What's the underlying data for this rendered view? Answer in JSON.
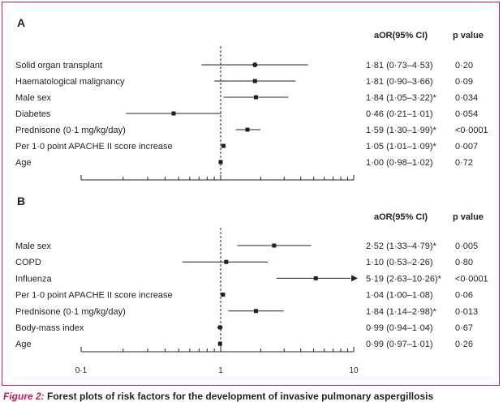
{
  "figure": {
    "caption_label": "Figure 2:",
    "caption_text": " Forest plots of risk factors for the development of invasive pulmonary aspergillosis",
    "border_color": "#c2185b"
  },
  "chart_data": [
    {
      "type": "forest",
      "panel": "A",
      "col_or_header": "aOR(95% CI)",
      "col_p_header": "p value",
      "x_scale": "log",
      "xlim": [
        0.1,
        10
      ],
      "reference_line": 1,
      "rows": [
        {
          "label": "Solid organ transplant",
          "or": 1.81,
          "lo": 0.73,
          "hi": 4.53,
          "ci_text": "1·81 (0·73–4·53)",
          "p_text": "0·20",
          "marker": "circle"
        },
        {
          "label": "Haematological malignancy",
          "or": 1.81,
          "lo": 0.9,
          "hi": 3.66,
          "ci_text": "1·81 (0·90–3·66)",
          "p_text": "0·09",
          "marker": "square"
        },
        {
          "label": "Male sex",
          "or": 1.84,
          "lo": 1.05,
          "hi": 3.22,
          "ci_text": "1·84 (1·05–3·22)*",
          "p_text": "0·034",
          "marker": "square"
        },
        {
          "label": "Diabetes",
          "or": 0.46,
          "lo": 0.21,
          "hi": 1.01,
          "ci_text": "0·46 (0·21–1·01)",
          "p_text": "0·054",
          "marker": "square"
        },
        {
          "label": "Prednisone (0·1 mg/kg/day)",
          "or": 1.59,
          "lo": 1.3,
          "hi": 1.99,
          "ci_text": "1·59 (1·30–1·99)*",
          "p_text": "<0·0001",
          "marker": "square"
        },
        {
          "label": "Per 1·0 point APACHE II score increase",
          "or": 1.05,
          "lo": 1.01,
          "hi": 1.09,
          "ci_text": "1·05 (1·01–1·09)*",
          "p_text": "0·007",
          "marker": "square"
        },
        {
          "label": "Age",
          "or": 1.0,
          "lo": 0.98,
          "hi": 1.02,
          "ci_text": "1·00 (0·98–1·02)",
          "p_text": "0·72",
          "marker": "square"
        }
      ]
    },
    {
      "type": "forest",
      "panel": "B",
      "col_or_header": "aOR(95% CI)",
      "col_p_header": "p value",
      "x_scale": "log",
      "xlim": [
        0.1,
        10
      ],
      "x_ticks": [
        "0·1",
        "1",
        "10"
      ],
      "reference_line": 1,
      "rows": [
        {
          "label": "Male sex",
          "or": 2.52,
          "lo": 1.33,
          "hi": 4.79,
          "ci_text": "2·52 (1·33–4·79)*",
          "p_text": "0·005",
          "marker": "square"
        },
        {
          "label": "COPD",
          "or": 1.1,
          "lo": 0.53,
          "hi": 2.26,
          "ci_text": "1·10 (0·53–2·26)",
          "p_text": "0·80",
          "marker": "square"
        },
        {
          "label": "Influenza",
          "or": 5.19,
          "lo": 2.63,
          "hi": 10.26,
          "ci_text": "5·19 (2·63–10·26)*",
          "p_text": "<0·0001",
          "marker": "square",
          "arrow": true
        },
        {
          "label": "Per 1·0 point APACHE II score increase",
          "or": 1.04,
          "lo": 1.0,
          "hi": 1.08,
          "ci_text": "1·04 (1·00–1·08)",
          "p_text": "0·06",
          "marker": "square"
        },
        {
          "label": "Prednisone (0·1 mg/kg/day)",
          "or": 1.84,
          "lo": 1.14,
          "hi": 2.98,
          "ci_text": "1·84 (1·14–2·98)*",
          "p_text": "0·013",
          "marker": "square"
        },
        {
          "label": "Body-mass index",
          "or": 0.99,
          "lo": 0.94,
          "hi": 1.04,
          "ci_text": "0·99 (0·94–1·04)",
          "p_text": "0·67",
          "marker": "square"
        },
        {
          "label": "Age",
          "or": 0.99,
          "lo": 0.97,
          "hi": 1.01,
          "ci_text": "0·99 (0·97–1·01)",
          "p_text": "0·26",
          "marker": "square"
        }
      ]
    }
  ]
}
